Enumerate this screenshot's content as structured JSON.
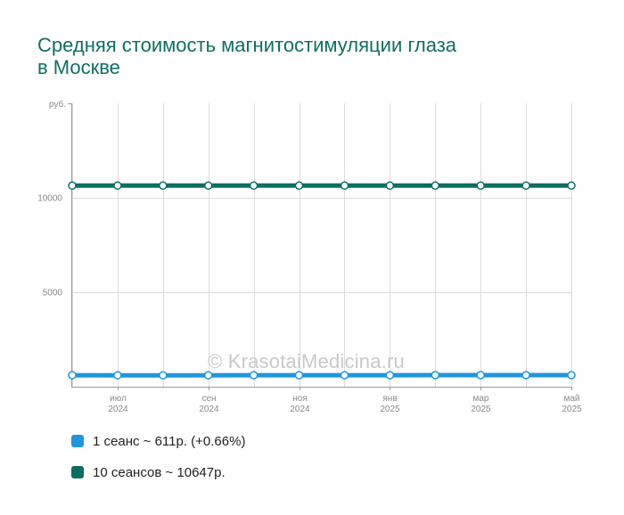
{
  "title_lines": [
    "Средняя стоимость магнитостимуляции глаза",
    "в Москве"
  ],
  "watermark": "© KrasotaiMedicina.ru",
  "legend": [
    {
      "label": "1 сеанс ~ 611р. (+0.66%)",
      "color": "#2196dc"
    },
    {
      "label": "10 сеансов ~ 10647р.",
      "color": "#0b6e63"
    }
  ],
  "chart_data": {
    "type": "line",
    "y_unit": "руб.",
    "ylim": [
      0,
      15000
    ],
    "y_ticks": [
      5000,
      10000
    ],
    "x_tick_labels": [
      {
        "month": "июл",
        "year": "2024"
      },
      {
        "month": "сен",
        "year": "2024"
      },
      {
        "month": "ноя",
        "year": "2024"
      },
      {
        "month": "янв",
        "year": "2025"
      },
      {
        "month": "мар",
        "year": "2025"
      },
      {
        "month": "май",
        "year": "2025"
      }
    ],
    "x": [
      "2024-06",
      "2024-07",
      "2024-08",
      "2024-09",
      "2024-10",
      "2024-11",
      "2024-12",
      "2025-01",
      "2025-02",
      "2025-03",
      "2025-04",
      "2025-05"
    ],
    "grid": true,
    "series": [
      {
        "name": "1 сеанс",
        "color": "#2196dc",
        "values": [
          607,
          603,
          604,
          606,
          608,
          609,
          610,
          610,
          611,
          611,
          611,
          611
        ]
      },
      {
        "name": "10 сеансов",
        "color": "#0b6e63",
        "values": [
          10647,
          10647,
          10647,
          10647,
          10647,
          10647,
          10647,
          10647,
          10647,
          10647,
          10647,
          10647
        ]
      }
    ]
  }
}
